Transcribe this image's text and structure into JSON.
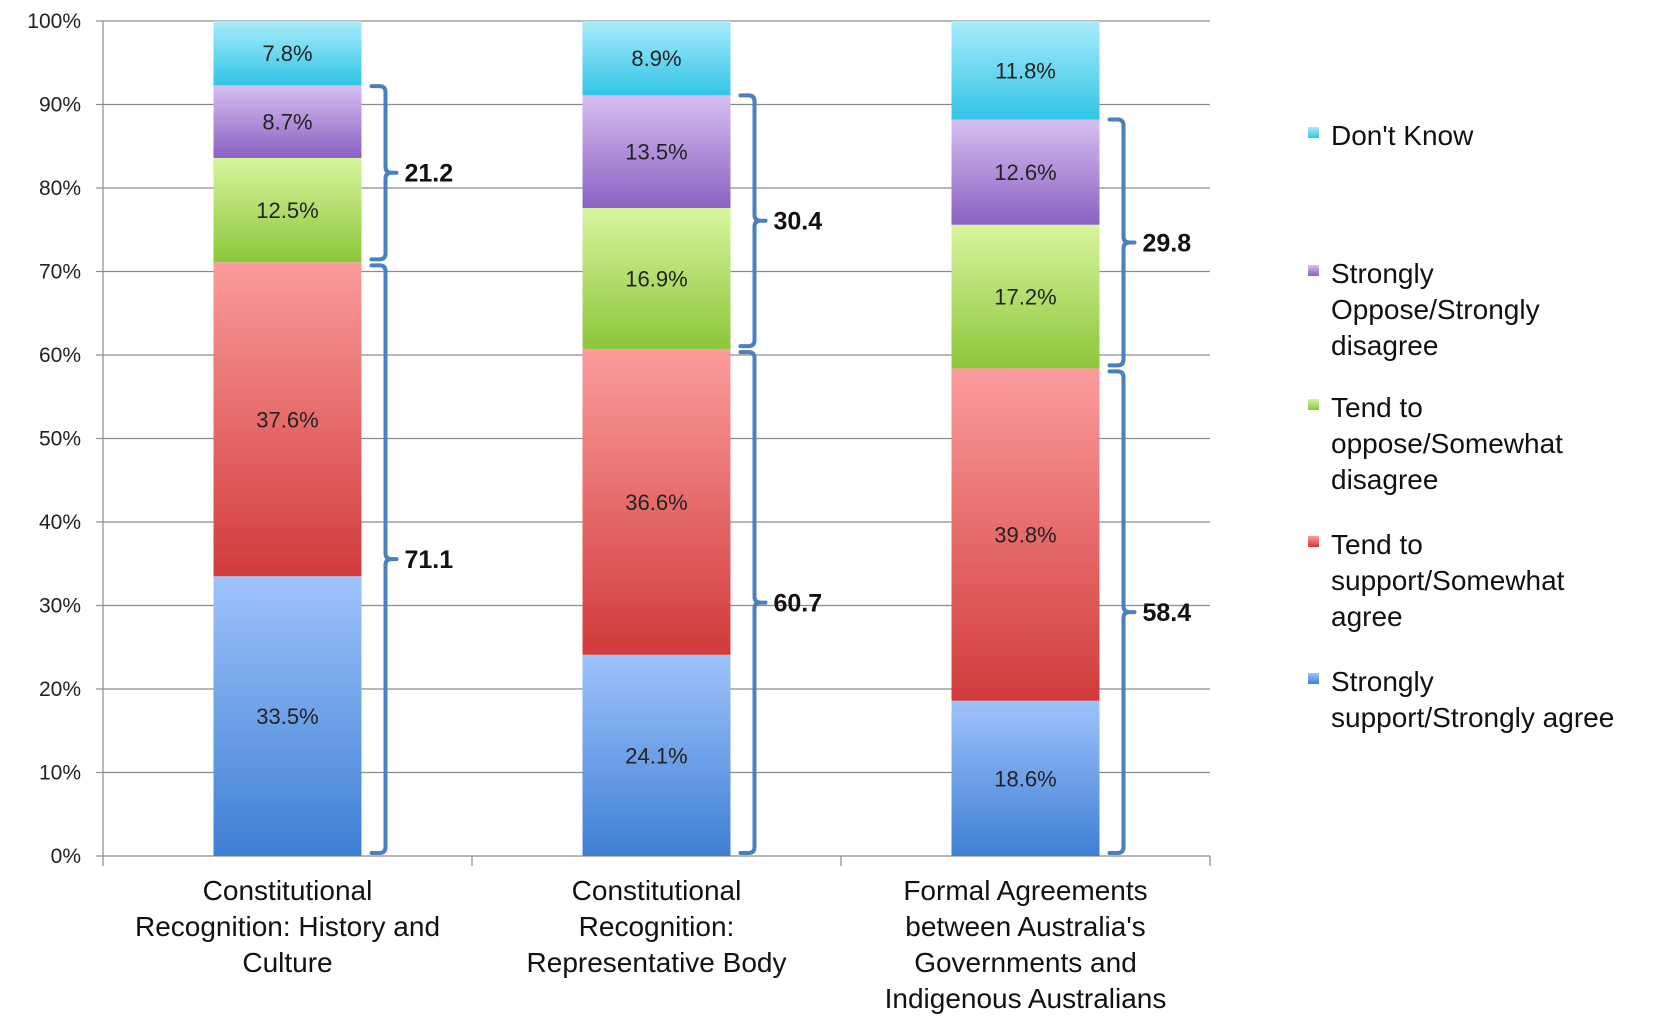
{
  "chart_data": {
    "type": "bar",
    "stacked": true,
    "percent_axis": true,
    "ylim": [
      0,
      100
    ],
    "yticks": [
      "0%",
      "10%",
      "20%",
      "30%",
      "40%",
      "50%",
      "60%",
      "70%",
      "80%",
      "90%",
      "100%"
    ],
    "grid": true,
    "legend_position": "right",
    "categories": [
      [
        "Constitutional",
        "Recognition: History and",
        "Culture"
      ],
      [
        "Constitutional",
        "Recognition:",
        "Representative Body"
      ],
      [
        "Formal Agreements",
        "between Australia's",
        "Governments and",
        "Indigenous Australians"
      ]
    ],
    "series": [
      {
        "name": "Strongly support/Strongly agree",
        "legend_lines": [
          "Strongly",
          "support/Strongly agree"
        ],
        "color_top": "#9ec3fb",
        "color_bottom": "#3f7fd4",
        "values": [
          33.5,
          24.1,
          18.6
        ],
        "labels": [
          "33.5%",
          "24.1%",
          "18.6%"
        ]
      },
      {
        "name": "Tend to support/Somewhat agree",
        "legend_lines": [
          "Tend to",
          "support/Somewhat",
          "agree"
        ],
        "color_top": "#fb9c9c",
        "color_bottom": "#d13b3b",
        "values": [
          37.6,
          36.6,
          39.8
        ],
        "labels": [
          "37.6%",
          "36.6%",
          "39.8%"
        ]
      },
      {
        "name": "Tend to oppose/Somewhat disagree",
        "legend_lines": [
          "Tend to",
          "oppose/Somewhat",
          "disagree"
        ],
        "color_top": "#d8f59f",
        "color_bottom": "#8cc63a",
        "values": [
          12.5,
          16.9,
          17.2
        ],
        "labels": [
          "12.5%",
          "16.9%",
          "17.2%"
        ]
      },
      {
        "name": "Strongly Oppose/Strongly disagree",
        "legend_lines": [
          "Strongly",
          "Oppose/Strongly",
          "disagree"
        ],
        "color_top": "#d7bff1",
        "color_bottom": "#8a61c2",
        "values": [
          8.7,
          13.5,
          12.6
        ],
        "labels": [
          "8.7%",
          "13.5%",
          "12.6%"
        ]
      },
      {
        "name": "Don't Know",
        "legend_lines": [
          "Don't Know"
        ],
        "color_top": "#a8ecfb",
        "color_bottom": "#32c4e6",
        "values": [
          7.8,
          8.9,
          11.8
        ],
        "labels": [
          "7.8%",
          "8.9%",
          "11.8%"
        ]
      }
    ],
    "legend_order": [
      4,
      3,
      2,
      1,
      0
    ],
    "brace_annotations": [
      {
        "support": "71.1",
        "oppose": "21.2",
        "support_top": 71.1,
        "oppose_range": [
          71.1,
          92.2
        ]
      },
      {
        "support": "60.7",
        "oppose": "30.4",
        "support_top": 60.7,
        "oppose_range": [
          60.7,
          91.1
        ]
      },
      {
        "support": "58.4",
        "oppose": "29.8",
        "support_top": 58.4,
        "oppose_range": [
          58.4,
          88.2
        ]
      }
    ],
    "brace_color": "#4a7fc0"
  }
}
